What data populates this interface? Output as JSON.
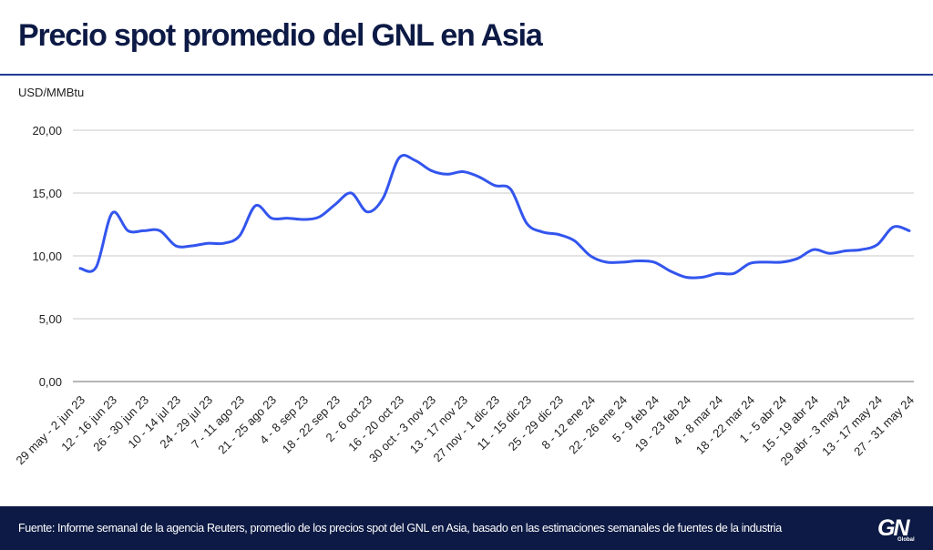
{
  "header": {
    "title": "Precio spot promedio del GNL en Asia",
    "unit": "USD/MMBtu"
  },
  "footer": {
    "source": "Fuente: Informe semanal de la agencia Reuters, promedio de los precios spot del GNL en Asia, basado en las estimaciones semanales de fuentes de la industria",
    "logo_text": "GN",
    "logo_subtext": "Global"
  },
  "chart_data": {
    "type": "line",
    "title": "Precio spot promedio del GNL en Asia",
    "ylabel": "USD/MMBtu",
    "xlabel": "",
    "ylim": [
      0,
      20
    ],
    "yticks": [
      "0,00",
      "5,00",
      "10,00",
      "15,00",
      "20,00"
    ],
    "ytick_values": [
      0,
      5,
      10,
      15,
      20
    ],
    "grid": true,
    "line_color": "#3355ee",
    "xtick_labels": [
      "29 may - 2 jun 23",
      "12 - 16 jun 23",
      "26 - 30 jun 23",
      "10 - 14 jul 23",
      "24 - 29 jul 23",
      "7 - 11 ago 23",
      "21 - 25 ago 23",
      "4 - 8 sep 23",
      "18 - 22 sep 23",
      "2 - 6 oct 23",
      "16 - 20 oct 23",
      "30 oct - 3 nov 23",
      "13 - 17 nov 23",
      "27 nov - 1 dic 23",
      "11 - 15 dic 23",
      "25 - 29 dic 23",
      "8 - 12 ene 24",
      "22 - 26 ene 24",
      "5 - 9 feb 24",
      "19 - 23 feb 24",
      "4 - 8 mar 24",
      "18 - 22 mar 24",
      "1 - 5 abr 24",
      "15 - 19 abr 24",
      "29 abr - 3 may 24",
      "13 - 17 may 24",
      "27 - 31 may 24"
    ],
    "values": [
      9.0,
      9.1,
      13.4,
      12.0,
      12.0,
      12.0,
      10.8,
      10.8,
      11.0,
      11.0,
      11.6,
      14.0,
      13.0,
      13.0,
      12.9,
      13.1,
      14.1,
      15.0,
      13.5,
      14.6,
      17.8,
      17.6,
      16.8,
      16.5,
      16.7,
      16.3,
      15.6,
      15.3,
      12.6,
      11.9,
      11.7,
      11.2,
      10.0,
      9.5,
      9.5,
      9.6,
      9.5,
      8.8,
      8.3,
      8.3,
      8.6,
      8.6,
      9.4,
      9.5,
      9.5,
      9.8,
      10.5,
      10.2,
      10.4,
      10.5,
      10.9,
      12.3,
      12.0
    ]
  }
}
